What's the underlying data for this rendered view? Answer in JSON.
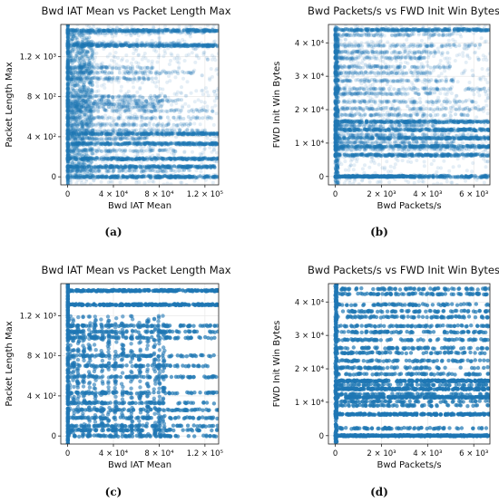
{
  "captions": [
    "(a)",
    "(b)",
    "(c)",
    "(d)"
  ],
  "chart_data": [
    {
      "type": "scatter",
      "title": "Bwd IAT Mean vs Packet Length Max",
      "xlabel": "Bwd IAT Mean",
      "ylabel": "Packet Length Max",
      "xlim": [
        -6000,
        132000
      ],
      "ylim": [
        -80,
        1520
      ],
      "xticks": [
        0,
        40000,
        80000,
        120000
      ],
      "xtick_labels": [
        "0",
        "4 × 10⁴",
        "8 × 10⁴",
        "1.2 × 10⁵"
      ],
      "yticks": [
        0,
        400,
        800,
        1200
      ],
      "ytick_labels": [
        "0",
        "4 × 10²",
        "8 × 10²",
        "1.2 × 10³"
      ],
      "grid": true,
      "color": "#1f77b4",
      "style": "transparent",
      "bands_y": [
        0,
        60,
        100,
        180,
        260,
        330,
        380,
        430,
        460,
        520,
        590,
        660,
        700,
        730,
        760,
        800,
        980,
        1040,
        1090,
        1310,
        1330,
        1440,
        1460
      ],
      "strong_bands_y": [
        0,
        100,
        180,
        330,
        430,
        1310,
        1460
      ],
      "dense_x_range": [
        0,
        22000
      ]
    },
    {
      "type": "scatter",
      "title": "Bwd Packets/s vs FWD Init Win Bytes",
      "xlabel": "Bwd Packets/s",
      "ylabel": "FWD Init Win Bytes",
      "xlim": [
        -300,
        6700
      ],
      "ylim": [
        -2500,
        45500
      ],
      "xticks": [
        0,
        2000,
        4000,
        6000
      ],
      "xtick_labels": [
        "0",
        "2 × 10³",
        "4 × 10³",
        "6 × 10³"
      ],
      "yticks": [
        0,
        10000,
        20000,
        30000,
        40000
      ],
      "ytick_labels": [
        "0",
        "1 × 10⁴",
        "2 × 10⁴",
        "3 × 10⁴",
        "4 × 10⁴"
      ],
      "grid": true,
      "color": "#1f77b4",
      "style": "transparent",
      "bands_y": [
        0,
        6400,
        8200,
        9000,
        10200,
        11500,
        12400,
        14000,
        15200,
        16400,
        18400,
        20300,
        22400,
        24800,
        26200,
        28700,
        31000,
        32800,
        35500,
        37200,
        39200,
        42400,
        43900
      ],
      "strong_bands_y": [
        0,
        6400,
        9000,
        11500,
        14000,
        16400,
        43900
      ],
      "zero_band_x_range": [
        0,
        3400
      ]
    },
    {
      "type": "scatter",
      "title": "Bwd IAT Mean vs Packet Length Max",
      "xlabel": "Bwd IAT Mean",
      "ylabel": "Packet Length Max",
      "xlim": [
        -6000,
        132000
      ],
      "ylim": [
        -80,
        1520
      ],
      "xticks": [
        0,
        40000,
        80000,
        120000
      ],
      "xtick_labels": [
        "0",
        "4 × 10⁴",
        "8 × 10⁴",
        "1.2 × 10⁵"
      ],
      "yticks": [
        0,
        400,
        800,
        1200
      ],
      "ytick_labels": [
        "0",
        "4 × 10²",
        "8 × 10²",
        "1.2 × 10³"
      ],
      "grid": true,
      "color": "#1f77b4",
      "style": "sparse",
      "bands_y": [
        0,
        60,
        100,
        180,
        260,
        330,
        430,
        590,
        700,
        800,
        980,
        1040,
        1100,
        1310,
        1450
      ],
      "strong_bands_y": [
        1310,
        1450
      ],
      "columns_x": [
        2000,
        5000,
        9000,
        14000,
        19000,
        24000,
        30000,
        36000,
        42000,
        48000,
        56000,
        63000,
        70000,
        76000,
        80000,
        84000
      ]
    },
    {
      "type": "scatter",
      "title": "Bwd Packets/s vs FWD Init Win Bytes",
      "xlabel": "Bwd Packets/s",
      "ylabel": "FWD Init Win Bytes",
      "xlim": [
        -300,
        6700
      ],
      "ylim": [
        -2500,
        45500
      ],
      "xticks": [
        0,
        2000,
        4000,
        6000
      ],
      "xtick_labels": [
        "0",
        "2 × 10³",
        "4 × 10³",
        "6 × 10³"
      ],
      "yticks": [
        0,
        10000,
        20000,
        30000,
        40000
      ],
      "ytick_labels": [
        "0",
        "1 × 10⁴",
        "2 × 10⁴",
        "3 × 10⁴",
        "4 × 10⁴"
      ],
      "grid": true,
      "color": "#1f77b4",
      "style": "sparse",
      "bands_y": [
        0,
        2200,
        6400,
        9000,
        10200,
        11500,
        12400,
        14000,
        15200,
        16400,
        18400,
        20300,
        22400,
        24800,
        26200,
        28700,
        31000,
        32800,
        35500,
        37200,
        39200,
        42400,
        43900
      ],
      "strong_bands_y": [
        0,
        6400,
        11500,
        14000,
        16400
      ],
      "zero_band_x_range": [
        0,
        6600
      ]
    }
  ]
}
